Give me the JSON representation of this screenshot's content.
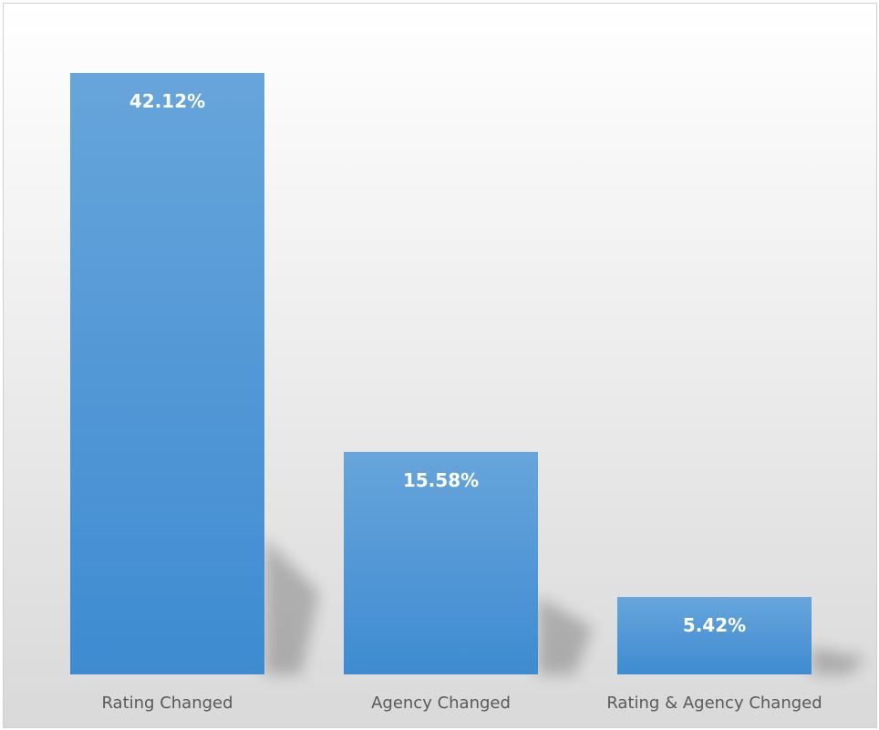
{
  "chart_data": {
    "type": "bar",
    "categories": [
      "Rating Changed",
      "Agency Changed",
      "Rating & Agency Changed"
    ],
    "values": [
      42.12,
      15.58,
      5.42
    ],
    "value_labels": [
      "42.12%",
      "15.58%",
      "5.42%"
    ],
    "color": "#4a90d4"
  }
}
